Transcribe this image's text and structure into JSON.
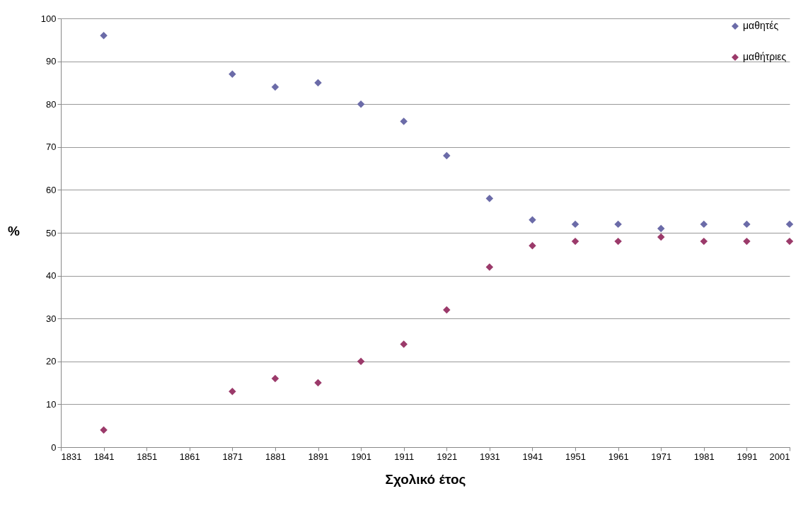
{
  "chart_data": {
    "type": "scatter",
    "xlabel": "Σχολικό έτος",
    "ylabel": "%",
    "x": [
      1841,
      1871,
      1881,
      1891,
      1901,
      1911,
      1921,
      1931,
      1941,
      1951,
      1961,
      1971,
      1981,
      1991,
      2001
    ],
    "series": [
      {
        "name": "μαθητές",
        "color": "#6b6ba8",
        "values": [
          96,
          87,
          84,
          85,
          80,
          76,
          68,
          58,
          53,
          52,
          52,
          51,
          52,
          52,
          52
        ]
      },
      {
        "name": "μαθήτριες",
        "color": "#9b3a6a",
        "values": [
          4,
          13,
          16,
          15,
          20,
          24,
          32,
          42,
          47,
          48,
          48,
          49,
          48,
          48,
          48
        ]
      }
    ],
    "xlim": [
      1831,
      2001
    ],
    "xticks": [
      1831,
      1841,
      1851,
      1861,
      1871,
      1881,
      1891,
      1901,
      1911,
      1921,
      1931,
      1941,
      1951,
      1961,
      1971,
      1981,
      1991,
      2001
    ],
    "ylim": [
      0,
      100
    ],
    "yticks": [
      0,
      10,
      20,
      30,
      40,
      50,
      60,
      70,
      80,
      90,
      100
    ],
    "grid": "y",
    "legend": "top right",
    "marker": "diamond"
  }
}
